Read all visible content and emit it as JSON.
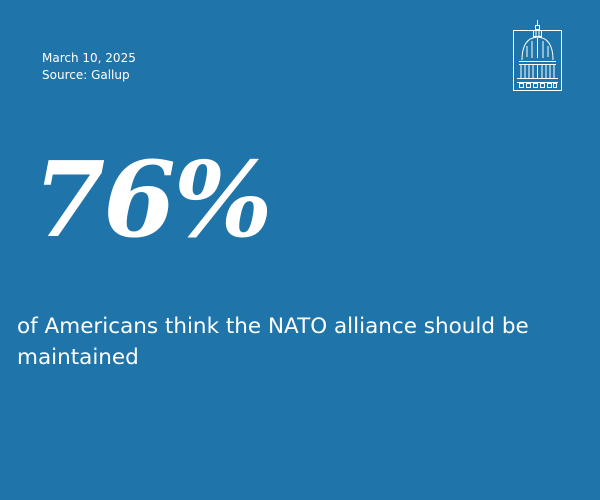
{
  "meta": {
    "date": "March 10, 2025",
    "source": "Source: Gallup"
  },
  "logo": {
    "icon": "capitol-dome-icon"
  },
  "stat": {
    "value": "76%",
    "caption": "of Americans think the NATO alliance should be maintained"
  },
  "colors": {
    "background": "#1f74aa",
    "text": "#ffffff"
  }
}
